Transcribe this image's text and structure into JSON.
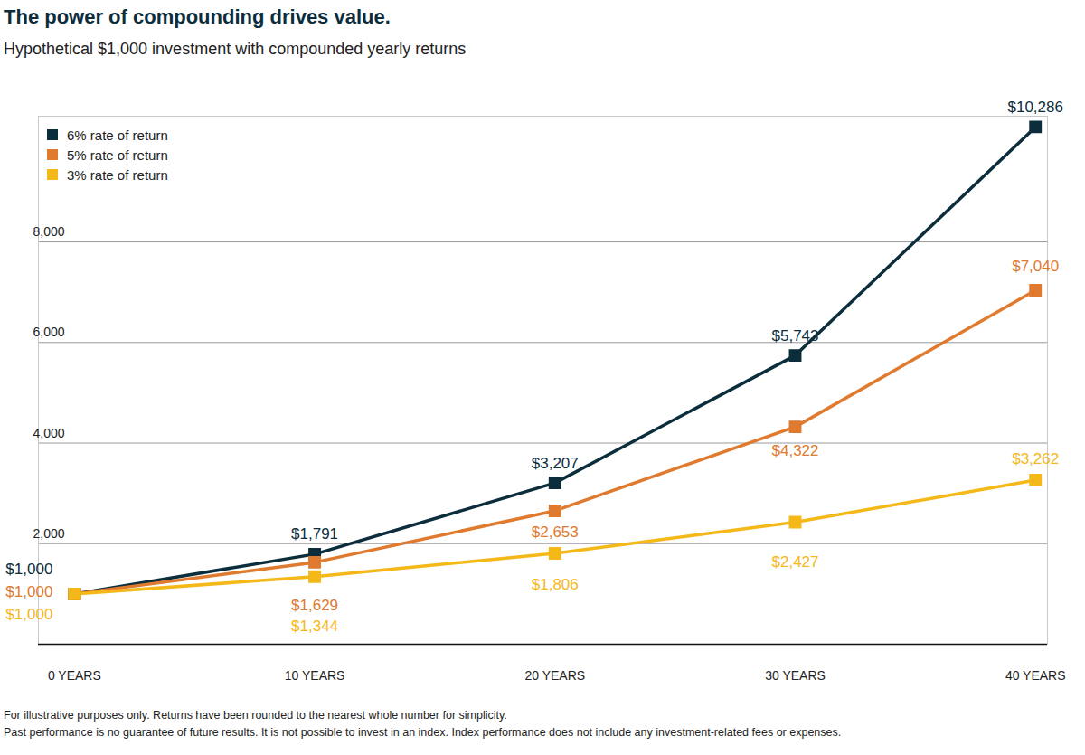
{
  "chart_data": {
    "type": "line",
    "title": "The power of compounding drives value.",
    "subtitle": "Hypothetical $1,000 investment with compounded yearly returns",
    "x": [
      0,
      10,
      20,
      30,
      40
    ],
    "series": [
      {
        "name": "6% rate of return",
        "color": "#0c2d3c",
        "marker": "square",
        "values": [
          1000,
          1791,
          3207,
          5743,
          10286
        ],
        "value_labels": [
          "$1,000",
          "$1,791",
          "$3,207",
          "$5,743",
          "$10,286"
        ]
      },
      {
        "name": "5% rate of return",
        "color": "#e07a2e",
        "marker": "square",
        "values": [
          1000,
          1629,
          2653,
          4322,
          7040
        ],
        "value_labels": [
          "$1,000",
          "$1,629",
          "$2,653",
          "$4,322",
          "$7,040"
        ]
      },
      {
        "name": "3% rate of return",
        "color": "#f5b819",
        "marker": "square",
        "values": [
          1000,
          1344,
          1806,
          2427,
          3262
        ],
        "value_labels": [
          "$1,000",
          "$1,344",
          "$1,806",
          "$2,427",
          "$3,262"
        ]
      }
    ],
    "xlim": [
      -1.5,
      40.5
    ],
    "xticks": [
      {
        "value": 0,
        "label": "0 YEARS"
      },
      {
        "value": 10,
        "label": "10 YEARS"
      },
      {
        "value": 20,
        "label": "20 YEARS"
      },
      {
        "value": 30,
        "label": "30 YEARS"
      },
      {
        "value": 40,
        "label": "40 YEARS"
      }
    ],
    "ylim": [
      0,
      10500
    ],
    "yticks": [
      {
        "value": 2000,
        "label": "2,000"
      },
      {
        "value": 4000,
        "label": "4,000"
      },
      {
        "value": 6000,
        "label": "6,000"
      },
      {
        "value": 8000,
        "label": "8,000"
      }
    ],
    "grid": true,
    "legend": "upper left",
    "data_labels": true,
    "footnotes": [
      "For illustrative purposes only. Returns have been rounded to the nearest whole number for simplicity.",
      "Past performance is no guarantee of future results. It is not possible to invest in an index. Index performance does not include any investment-related fees or expenses."
    ]
  }
}
